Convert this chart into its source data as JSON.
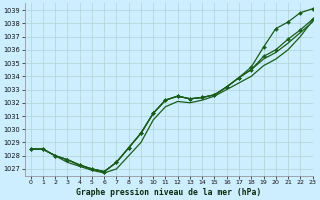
{
  "title": "Graphe pression niveau de la mer (hPa)",
  "bg_color": "#cceeff",
  "grid_color": "#b0d4d4",
  "line_color": "#1a5c1a",
  "xlim": [
    -0.5,
    23
  ],
  "ylim": [
    1026.5,
    1039.5
  ],
  "yticks": [
    1027,
    1028,
    1029,
    1030,
    1031,
    1032,
    1033,
    1034,
    1035,
    1036,
    1037,
    1038,
    1039
  ],
  "xticks": [
    0,
    1,
    2,
    3,
    4,
    5,
    6,
    7,
    8,
    9,
    10,
    11,
    12,
    13,
    14,
    15,
    16,
    17,
    18,
    19,
    20,
    21,
    22,
    23
  ],
  "s1": [
    1028.5,
    1028.5,
    1028.0,
    1027.7,
    1027.3,
    1027.0,
    1026.8,
    1027.5,
    1028.6,
    1029.7,
    1031.2,
    1032.2,
    1032.5,
    1032.3,
    1032.4,
    1032.6,
    1033.2,
    1033.9,
    1034.7,
    1036.2,
    1037.6,
    1038.1,
    1038.8,
    1039.1
  ],
  "s2": [
    1028.5,
    1028.5,
    1028.0,
    1027.7,
    1027.3,
    1027.0,
    1026.8,
    1027.5,
    1028.6,
    1029.7,
    1031.2,
    1032.2,
    1032.5,
    1032.3,
    1032.4,
    1032.6,
    1033.2,
    1033.9,
    1034.5,
    1035.5,
    1036.0,
    1036.8,
    1037.5,
    1038.3
  ],
  "s3": [
    1028.5,
    1028.5,
    1028.0,
    1027.7,
    1027.3,
    1027.0,
    1026.8,
    1027.5,
    1028.6,
    1029.7,
    1031.2,
    1032.2,
    1032.5,
    1032.3,
    1032.4,
    1032.6,
    1033.2,
    1033.9,
    1034.5,
    1035.3,
    1035.8,
    1036.5,
    1037.3,
    1038.1
  ],
  "s4": [
    1028.5,
    1028.5,
    1028.0,
    1027.5,
    1027.2,
    1026.9,
    1026.7,
    1027.0,
    1028.0,
    1029.0,
    1030.7,
    1031.7,
    1032.1,
    1032.0,
    1032.2,
    1032.5,
    1033.0,
    1033.5,
    1034.0,
    1034.8,
    1035.3,
    1036.0,
    1037.0,
    1038.2
  ]
}
